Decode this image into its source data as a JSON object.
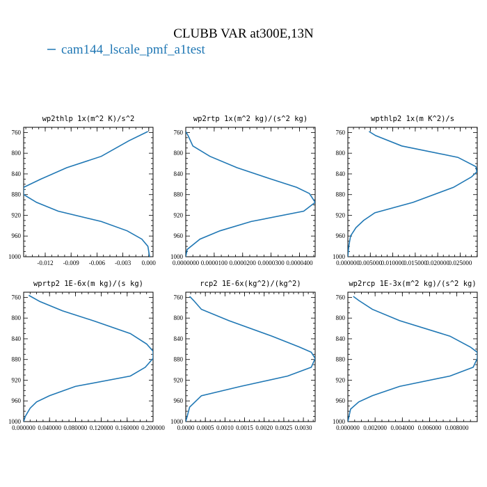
{
  "figure": {
    "title": "CLUBB VAR at300E,13N",
    "legend_label": "cam144_lscale_pmf_a1test",
    "line_color": "#1f77b4"
  },
  "chart_data": [
    {
      "type": "line",
      "title": "wp2thlp  1x(m^2 K)/s^2",
      "xlim": [
        -0.0145,
        0.0005
      ],
      "ylim": [
        1000,
        750
      ],
      "xticks": [
        -0.012,
        -0.009,
        -0.006,
        -0.003,
        0.0
      ],
      "xtick_labels": [
        "-0.012",
        "-0.009",
        "-0.006",
        "-0.003",
        "0.000"
      ],
      "yticks": [
        760,
        800,
        840,
        880,
        920,
        960,
        1000
      ],
      "series": [
        {
          "x": [
            -0.0001,
            -0.0023,
            -0.0055,
            -0.0095,
            -0.0125,
            -0.0145,
            -0.0145,
            -0.013,
            -0.0105,
            -0.0055,
            -0.0025,
            -0.0008,
            -0.0001,
            0.0001
          ],
          "y": [
            758,
            776,
            806,
            828,
            850,
            866,
            880,
            895,
            912,
            932,
            950,
            966,
            980,
            1000
          ]
        }
      ]
    },
    {
      "type": "line",
      "title": "wp2rtp  1x(m^2 kg)/(s^2 kg)",
      "xlim": [
        0.0,
        4.55e-05
      ],
      "ylim": [
        1000,
        750
      ],
      "xticks": [
        0.0,
        1e-05,
        2e-05,
        3e-05,
        4e-05
      ],
      "xtick_labels": [
        "0.0000000",
        "0.0000100",
        "0.0000200",
        "0.0000300",
        "0.0000400"
      ],
      "yticks": [
        760,
        800,
        840,
        880,
        920,
        960,
        1000
      ],
      "series": [
        {
          "x": [
            0.0,
            8e-07,
            2.5e-06,
            8.5e-06,
            1.8e-05,
            3e-05,
            3.9e-05,
            4.35e-05,
            4.55e-05,
            4.15e-05,
            2.3e-05,
            1.2e-05,
            5e-06,
            5e-07,
            0.0
          ],
          "y": [
            758,
            766,
            786,
            806,
            828,
            850,
            866,
            878,
            895,
            912,
            932,
            950,
            966,
            986,
            1000
          ]
        }
      ]
    },
    {
      "type": "line",
      "title": "wpthlp2  1x(m K^2)/s",
      "xlim": [
        0.0,
        0.0288
      ],
      "ylim": [
        1000,
        750
      ],
      "xticks": [
        0.0,
        0.005,
        0.01,
        0.015,
        0.02,
        0.025
      ],
      "xtick_labels": [
        "0.000000",
        "0.005000",
        "0.010000",
        "0.015000",
        "0.020000",
        "0.025000"
      ],
      "yticks": [
        760,
        800,
        840,
        880,
        920,
        960,
        1000
      ],
      "series": [
        {
          "x": [
            0.0047,
            0.0062,
            0.012,
            0.0245,
            0.0285,
            0.0287,
            0.0275,
            0.0235,
            0.0145,
            0.006,
            0.0035,
            0.0018,
            0.0006,
            0.0002,
            0.0
          ],
          "y": [
            758,
            766,
            786,
            808,
            826,
            836,
            846,
            866,
            895,
            915,
            930,
            944,
            960,
            980,
            1000
          ]
        }
      ]
    },
    {
      "type": "line",
      "title": "wprtp2  1E-6x(m kg)/(s kg)",
      "xlim": [
        0.0,
        0.2
      ],
      "ylim": [
        1000,
        750
      ],
      "xticks": [
        0.0,
        0.04,
        0.08,
        0.12,
        0.16,
        0.2
      ],
      "xtick_labels": [
        "0.000000",
        "0.040000",
        "0.080000",
        "0.120000",
        "0.160000",
        "0.200000"
      ],
      "yticks": [
        760,
        800,
        840,
        880,
        920,
        960,
        1000
      ],
      "series": [
        {
          "x": [
            0.008,
            0.025,
            0.06,
            0.11,
            0.165,
            0.19,
            0.2,
            0.2,
            0.188,
            0.165,
            0.08,
            0.04,
            0.02,
            0.01,
            0.0025,
            0.0
          ],
          "y": [
            756,
            768,
            786,
            806,
            830,
            850,
            864,
            878,
            895,
            912,
            932,
            950,
            962,
            974,
            990,
            1000
          ]
        }
      ]
    },
    {
      "type": "line",
      "title": "rcp2  1E-6x(kg^2)/(kg^2)",
      "xlim": [
        0.0,
        0.0033
      ],
      "ylim": [
        1000,
        750
      ],
      "xticks": [
        0.0,
        0.0005,
        0.001,
        0.0015,
        0.002,
        0.0025,
        0.003
      ],
      "xtick_labels": [
        "0.0000",
        "0.0005",
        "0.0010",
        "0.0015",
        "0.0020",
        "0.0025",
        "0.0030"
      ],
      "yticks": [
        760,
        800,
        840,
        880,
        920,
        960,
        1000
      ],
      "series": [
        {
          "x": [
            0.0001,
            0.0002,
            0.0004,
            0.0011,
            0.0022,
            0.0029,
            0.0032,
            0.0033,
            0.0032,
            0.0026,
            0.0014,
            0.0004,
            0.0001,
            0.0
          ],
          "y": [
            758,
            766,
            783,
            805,
            835,
            856,
            866,
            878,
            895,
            912,
            932,
            950,
            972,
            1000
          ]
        }
      ]
    },
    {
      "type": "line",
      "title": "wp2rcp  1E-3x(m^2 kg)/(s^2 kg)",
      "xlim": [
        0.0,
        0.0095
      ],
      "ylim": [
        1000,
        750
      ],
      "xticks": [
        0.0,
        0.002,
        0.004,
        0.006,
        0.008
      ],
      "xtick_labels": [
        "0.000000",
        "0.002000",
        "0.004000",
        "0.006000",
        "0.008000"
      ],
      "yticks": [
        760,
        800,
        840,
        880,
        920,
        960,
        1000
      ],
      "series": [
        {
          "x": [
            0.0004,
            0.0008,
            0.0018,
            0.0038,
            0.0075,
            0.009,
            0.0095,
            0.0095,
            0.0092,
            0.0075,
            0.0038,
            0.0018,
            0.0008,
            0.0002,
            0.0
          ],
          "y": [
            758,
            766,
            783,
            805,
            835,
            856,
            866,
            878,
            895,
            912,
            932,
            950,
            962,
            976,
            1000
          ]
        }
      ]
    }
  ]
}
